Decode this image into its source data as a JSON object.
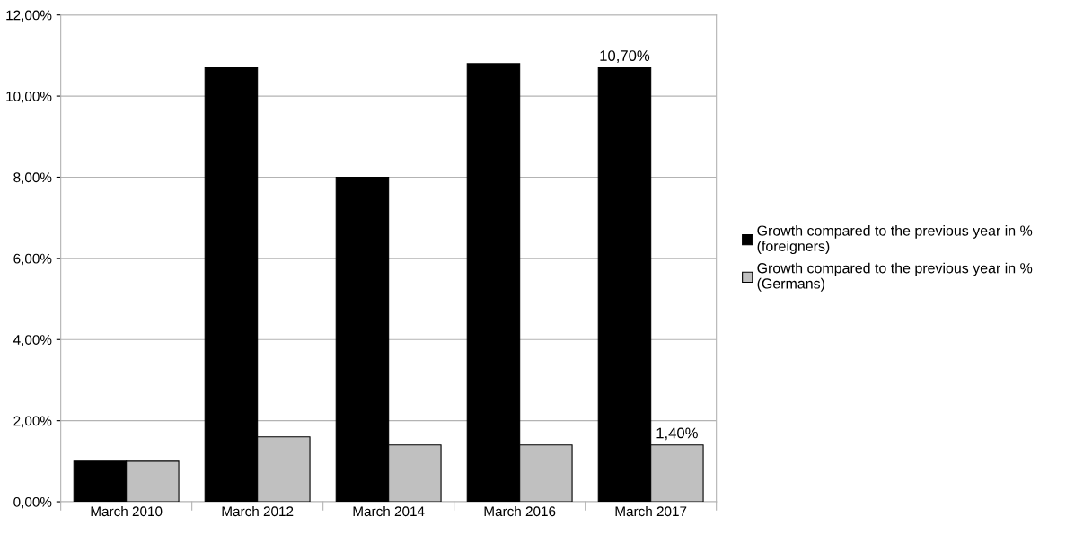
{
  "chart_data": {
    "type": "bar",
    "categories": [
      "March 2010",
      "March 2012",
      "March 2014",
      "March 2016",
      "March 2017"
    ],
    "series": [
      {
        "name": "Growth compared to the previous year in %\n(foreigners)",
        "color": "#000000",
        "values": [
          1.0,
          10.7,
          8.0,
          10.8,
          10.7
        ],
        "value_labels": [
          null,
          null,
          null,
          null,
          "10,70%"
        ]
      },
      {
        "name": "Growth compared to the previous year in %\n(Germans)",
        "color": "#c0c0c0",
        "values": [
          1.0,
          1.6,
          1.4,
          1.4,
          1.4
        ],
        "value_labels": [
          null,
          null,
          null,
          null,
          "1,40%"
        ]
      }
    ],
    "ylim": [
      0,
      12
    ],
    "yticks": [
      {
        "value": 0,
        "label": "0,00%"
      },
      {
        "value": 2,
        "label": "2,00%"
      },
      {
        "value": 4,
        "label": "4,00%"
      },
      {
        "value": 6,
        "label": "6,00%"
      },
      {
        "value": 8,
        "label": "8,00%"
      },
      {
        "value": 10,
        "label": "10,00%"
      },
      {
        "value": 12,
        "label": "12,00%"
      }
    ],
    "grid": "y",
    "legend": "right"
  }
}
